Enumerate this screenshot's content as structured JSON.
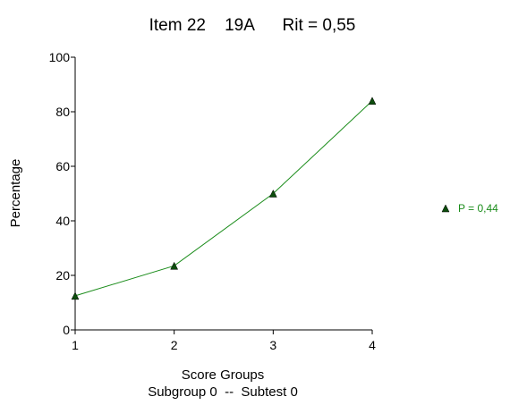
{
  "chart_data": {
    "type": "line",
    "title": "Item 22    19A      Rit = 0,55",
    "xlabel": "Score Groups",
    "xlabel_sub": "Subgroup 0  --  Subtest 0",
    "ylabel": "Percentage",
    "x": [
      1,
      2,
      3,
      4
    ],
    "xlim": [
      1,
      4
    ],
    "ylim": [
      0,
      100
    ],
    "x_ticks": [
      "1",
      "2",
      "3",
      "4"
    ],
    "y_ticks": [
      "0",
      "20",
      "40",
      "60",
      "80",
      "100"
    ],
    "grid": false,
    "legend_position": "right",
    "series": [
      {
        "name": "P = 0,44",
        "values": [
          12.5,
          23.5,
          50,
          84
        ],
        "color": "#1a8c1a",
        "marker_color": "#0d4d0d",
        "marker": "triangle"
      }
    ]
  }
}
